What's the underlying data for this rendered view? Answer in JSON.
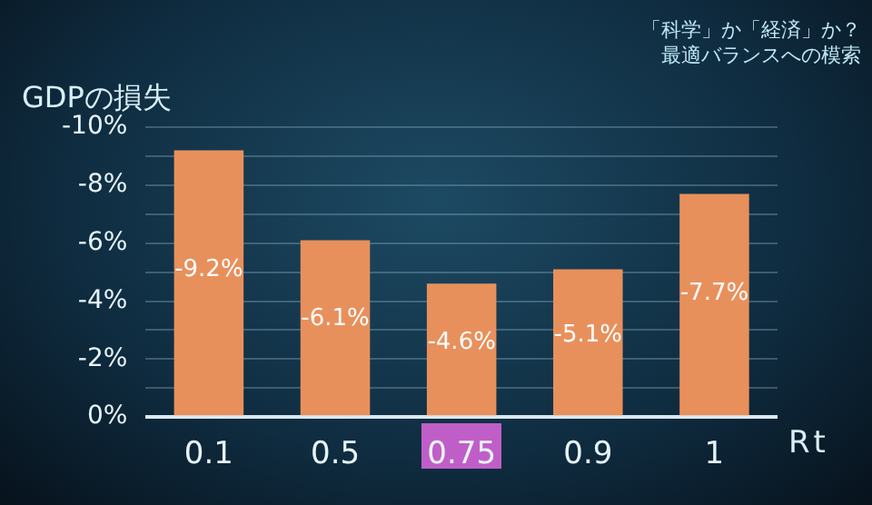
{
  "chart_data": {
    "type": "bar",
    "subtitle": "「科学」か「経済」か？最適バランスへの模索",
    "ylabel": "GDPの損失",
    "xlabel": "Rt",
    "categories": [
      "0.1",
      "0.5",
      "0.75",
      "0.9",
      "1"
    ],
    "values": [
      -9.2,
      -6.1,
      -4.6,
      -5.1,
      -7.7
    ],
    "value_labels": [
      "-9.2%",
      "-6.1%",
      "-4.6%",
      "-5.1%",
      "-7.7%"
    ],
    "color": "#e8905c",
    "ylim": [
      0,
      -10
    ],
    "yticks": [
      {
        "value": 0,
        "label": "0%"
      },
      {
        "value": -1,
        "label": null
      },
      {
        "value": -2,
        "label": "-2%"
      },
      {
        "value": -3,
        "label": null
      },
      {
        "value": -4,
        "label": "-4%"
      },
      {
        "value": -5,
        "label": null
      },
      {
        "value": -6,
        "label": "-6%"
      },
      {
        "value": -7,
        "label": null
      },
      {
        "value": -8,
        "label": "-8%"
      },
      {
        "value": -9,
        "label": null
      },
      {
        "value": -10,
        "label": "-10%"
      }
    ],
    "grid": "y",
    "legend": false
  }
}
